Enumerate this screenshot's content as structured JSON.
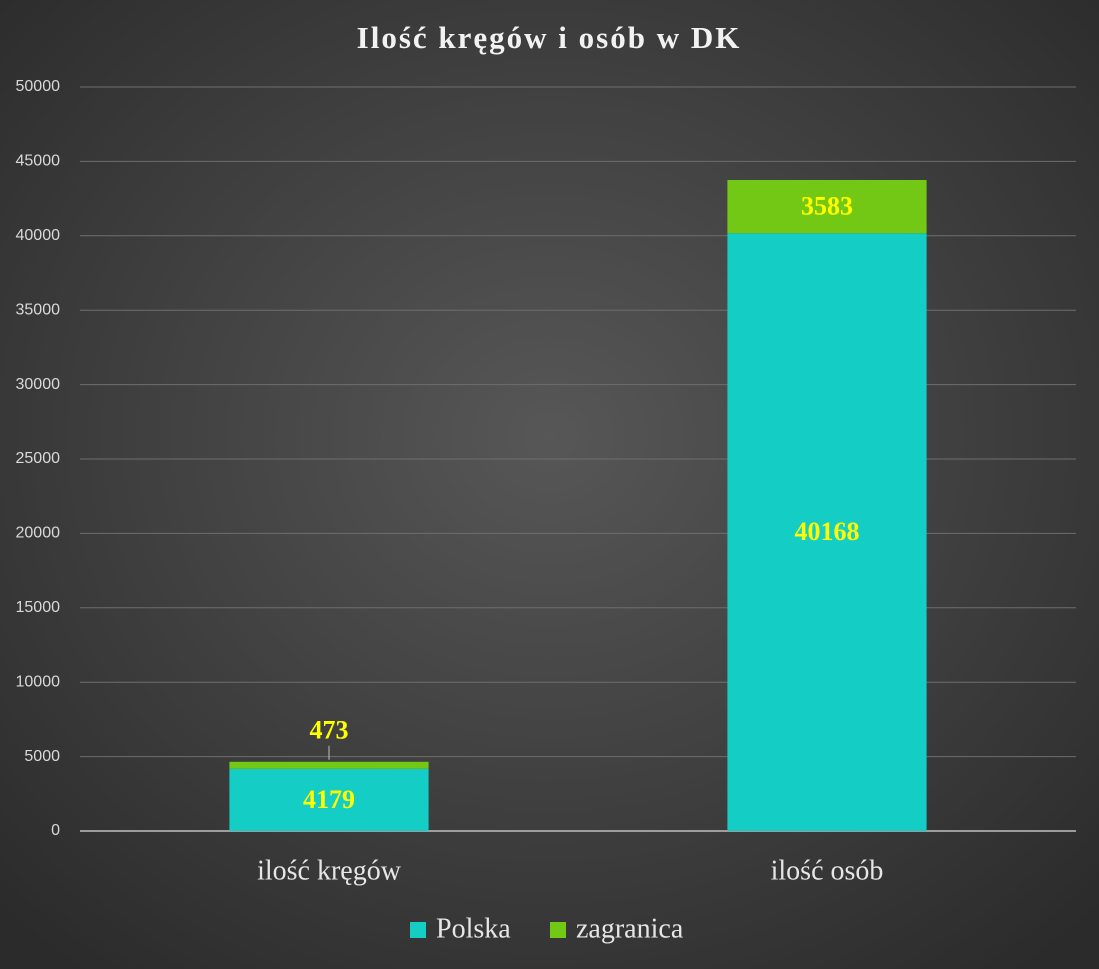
{
  "chart_data": {
    "type": "stacked_bar",
    "title": "Ilość kręgów i osób w DK",
    "categories": [
      "ilość kręgów",
      "ilość osób"
    ],
    "series": [
      {
        "name": "Polska",
        "color": "#14cdc4",
        "values": [
          4179,
          40168
        ]
      },
      {
        "name": "zagranica",
        "color": "#72c814",
        "values": [
          473,
          3583
        ]
      }
    ],
    "ylim": [
      0,
      50000
    ],
    "yticks": [
      0,
      5000,
      10000,
      15000,
      20000,
      25000,
      30000,
      35000,
      40000,
      45000,
      50000
    ],
    "grid": true,
    "legend": "bottom"
  }
}
